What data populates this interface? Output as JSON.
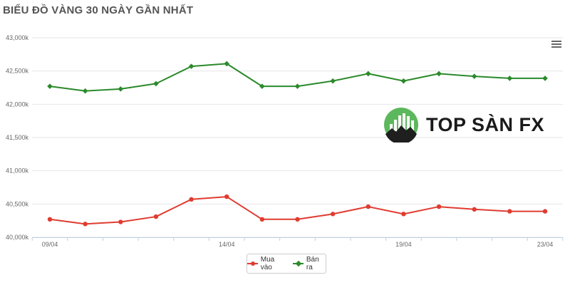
{
  "title": "BIỂU ĐỒ VÀNG 30 NGÀY GẦN NHẤT",
  "menu_icon": "hamburger-menu-icon",
  "logo": {
    "text": "TOP SÀN FX",
    "icon": "bull-chart-logo-icon"
  },
  "colors": {
    "buy": "#e03c31",
    "sell": "#2b8a2b",
    "grid": "#e6e6e6",
    "axis_text": "#666666"
  },
  "chart_data": {
    "type": "line",
    "title": "BIỂU ĐỒ VÀNG 30 NGÀY GẦN NHẤT",
    "xlabel": "",
    "ylabel": "",
    "ylim": [
      40000,
      43000
    ],
    "yticks": [
      40000,
      40500,
      41000,
      41500,
      42000,
      42500,
      43000
    ],
    "ytick_labels": [
      "40,000k",
      "40,500k",
      "41,000k",
      "41,500k",
      "42,000k",
      "42,500k",
      "43,000k"
    ],
    "xtick_labels": [
      {
        "index": 0,
        "label": "09/04"
      },
      {
        "index": 5,
        "label": "14/04"
      },
      {
        "index": 10,
        "label": "19/04"
      },
      {
        "index": 14,
        "label": "23/04"
      }
    ],
    "grid": true,
    "legend_position": "bottom-center",
    "series": [
      {
        "name": "Mua vào",
        "color": "#e03c31",
        "marker": "circle",
        "values": [
          40270,
          40200,
          40230,
          40310,
          40570,
          40610,
          40270,
          40270,
          40350,
          40460,
          40350,
          40460,
          40420,
          40390,
          40390
        ]
      },
      {
        "name": "Bán ra",
        "color": "#2b8a2b",
        "marker": "diamond",
        "values": [
          42270,
          42200,
          42230,
          42310,
          42570,
          42610,
          42270,
          42270,
          42350,
          42460,
          42350,
          42460,
          42420,
          42390,
          42390
        ]
      }
    ]
  }
}
